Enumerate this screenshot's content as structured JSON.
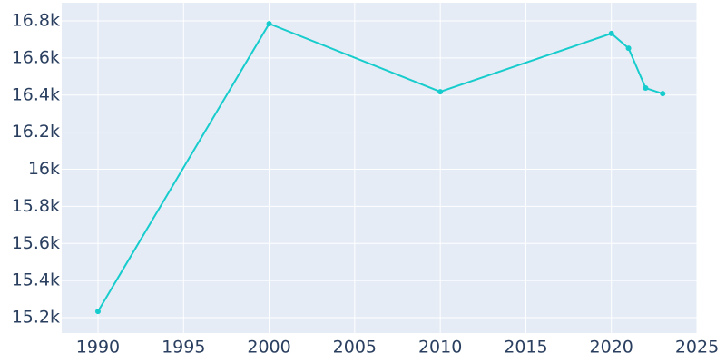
{
  "chart_data": {
    "type": "line",
    "x": [
      1990,
      2000,
      2010,
      2020,
      2021,
      2022,
      2023
    ],
    "series": [
      {
        "color": "#17cccc",
        "values": [
          15234,
          16785,
          16418,
          16732,
          16653,
          16438,
          16408
        ]
      }
    ],
    "xlim": [
      1987.88,
      2025
    ],
    "xticks": [
      1990,
      1995,
      2000,
      2005,
      2010,
      2015,
      2020,
      2025
    ],
    "ylim": [
      15117,
      16898
    ],
    "yticks": [
      {
        "value": 15200,
        "label": "15.2k"
      },
      {
        "value": 15400,
        "label": "15.4k"
      },
      {
        "value": 15600,
        "label": "15.6k"
      },
      {
        "value": 15800,
        "label": "15.8k"
      },
      {
        "value": 16000,
        "label": "16k"
      },
      {
        "value": 16200,
        "label": "16.2k"
      },
      {
        "value": 16400,
        "label": "16.4k"
      },
      {
        "value": 16600,
        "label": "16.6k"
      },
      {
        "value": 16800,
        "label": "16.8k"
      }
    ],
    "grid": true
  }
}
